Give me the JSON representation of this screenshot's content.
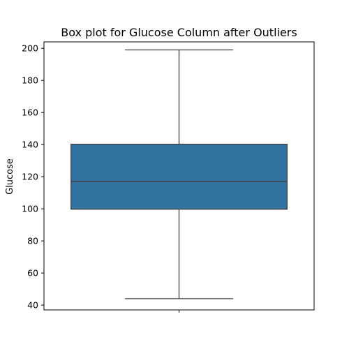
{
  "chart_data": {
    "type": "box",
    "title": "Box plot for Glucose Column after Outliers",
    "xlabel": "",
    "ylabel": "Glucose",
    "ylim": [
      37,
      204
    ],
    "yticks": [
      40,
      60,
      80,
      100,
      120,
      140,
      160,
      180,
      200
    ],
    "grid": false,
    "legend": "none",
    "series": [
      {
        "whisker_low": 44,
        "q1": 99.75,
        "median": 117,
        "q3": 140.25,
        "whisker_high": 199,
        "color": "#3274a1",
        "edge_color": "#3f3f3f"
      }
    ]
  }
}
